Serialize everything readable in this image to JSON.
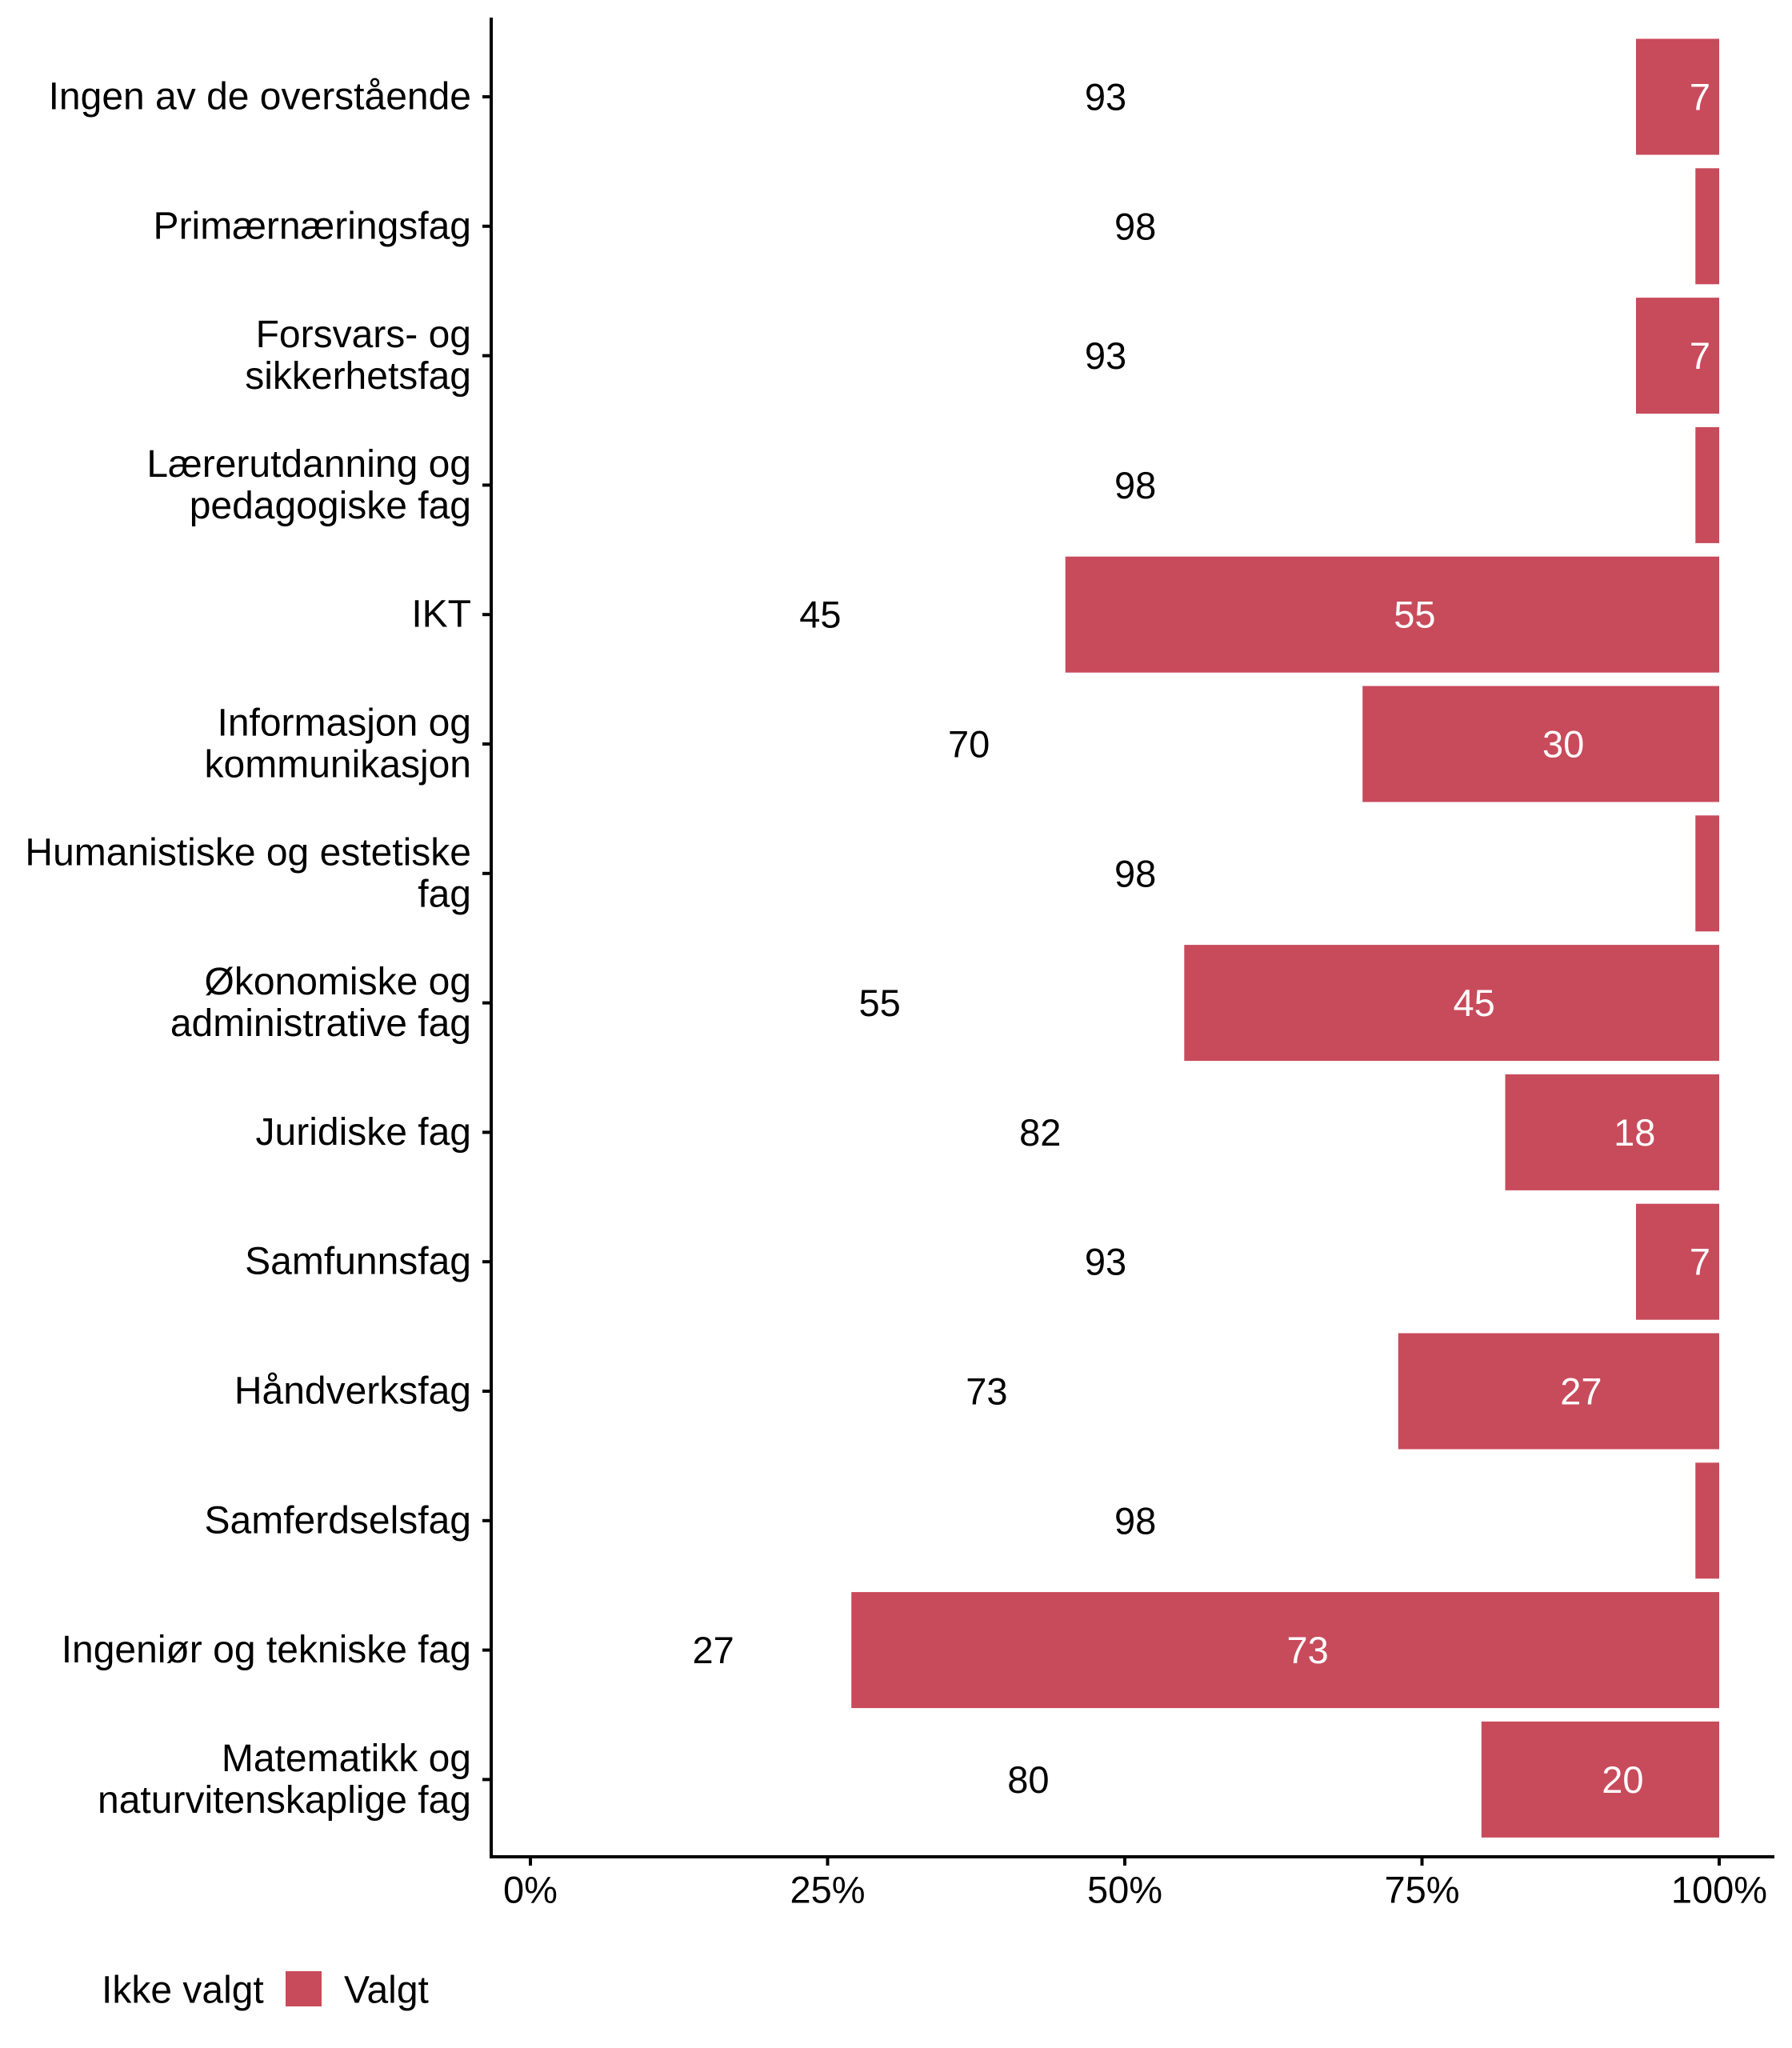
{
  "chart_data": {
    "type": "bar",
    "orientation": "horizontal",
    "stacked": "percent",
    "title": "",
    "xlabel": "",
    "ylabel": "",
    "xlim": [
      0,
      100
    ],
    "x_ticks": [
      "0%",
      "25%",
      "50%",
      "75%",
      "100%"
    ],
    "x_tick_values": [
      0,
      25,
      50,
      75,
      100
    ],
    "grid": false,
    "legend_position": "bottom-left",
    "categories": [
      "Ingen av de overstående",
      "Primærnæringsfag",
      "Forsvars- og\nsikkerhetsfag",
      "Lærerutdanning og\npedagogiske fag",
      "IKT",
      "Informasjon og\nkommunikasjon",
      "Humanistiske og estetiske\nfag",
      "Økonomiske og\nadministrative fag",
      "Juridiske fag",
      "Samfunnsfag",
      "Håndverksfag",
      "Samferdselsfag",
      "Ingeniør og tekniske fag",
      "Matematikk og\nnaturvitenskaplige fag"
    ],
    "series": [
      {
        "name": "Ikke valgt",
        "color": "#FFFFFF",
        "label_color": "#000000",
        "values": [
          93,
          98,
          93,
          98,
          45,
          70,
          98,
          55,
          82,
          93,
          73,
          98,
          27,
          80
        ]
      },
      {
        "name": "Valgt",
        "color": "#C84B5B",
        "label_color": "#FFFFFF",
        "values": [
          7,
          2,
          7,
          2,
          55,
          30,
          2,
          45,
          18,
          7,
          27,
          2,
          73,
          20
        ]
      }
    ]
  },
  "legend": {
    "items": [
      {
        "label": "Ikke valgt",
        "color": "#FFFFFF"
      },
      {
        "label": "Valgt",
        "color": "#C84B5B"
      }
    ]
  }
}
